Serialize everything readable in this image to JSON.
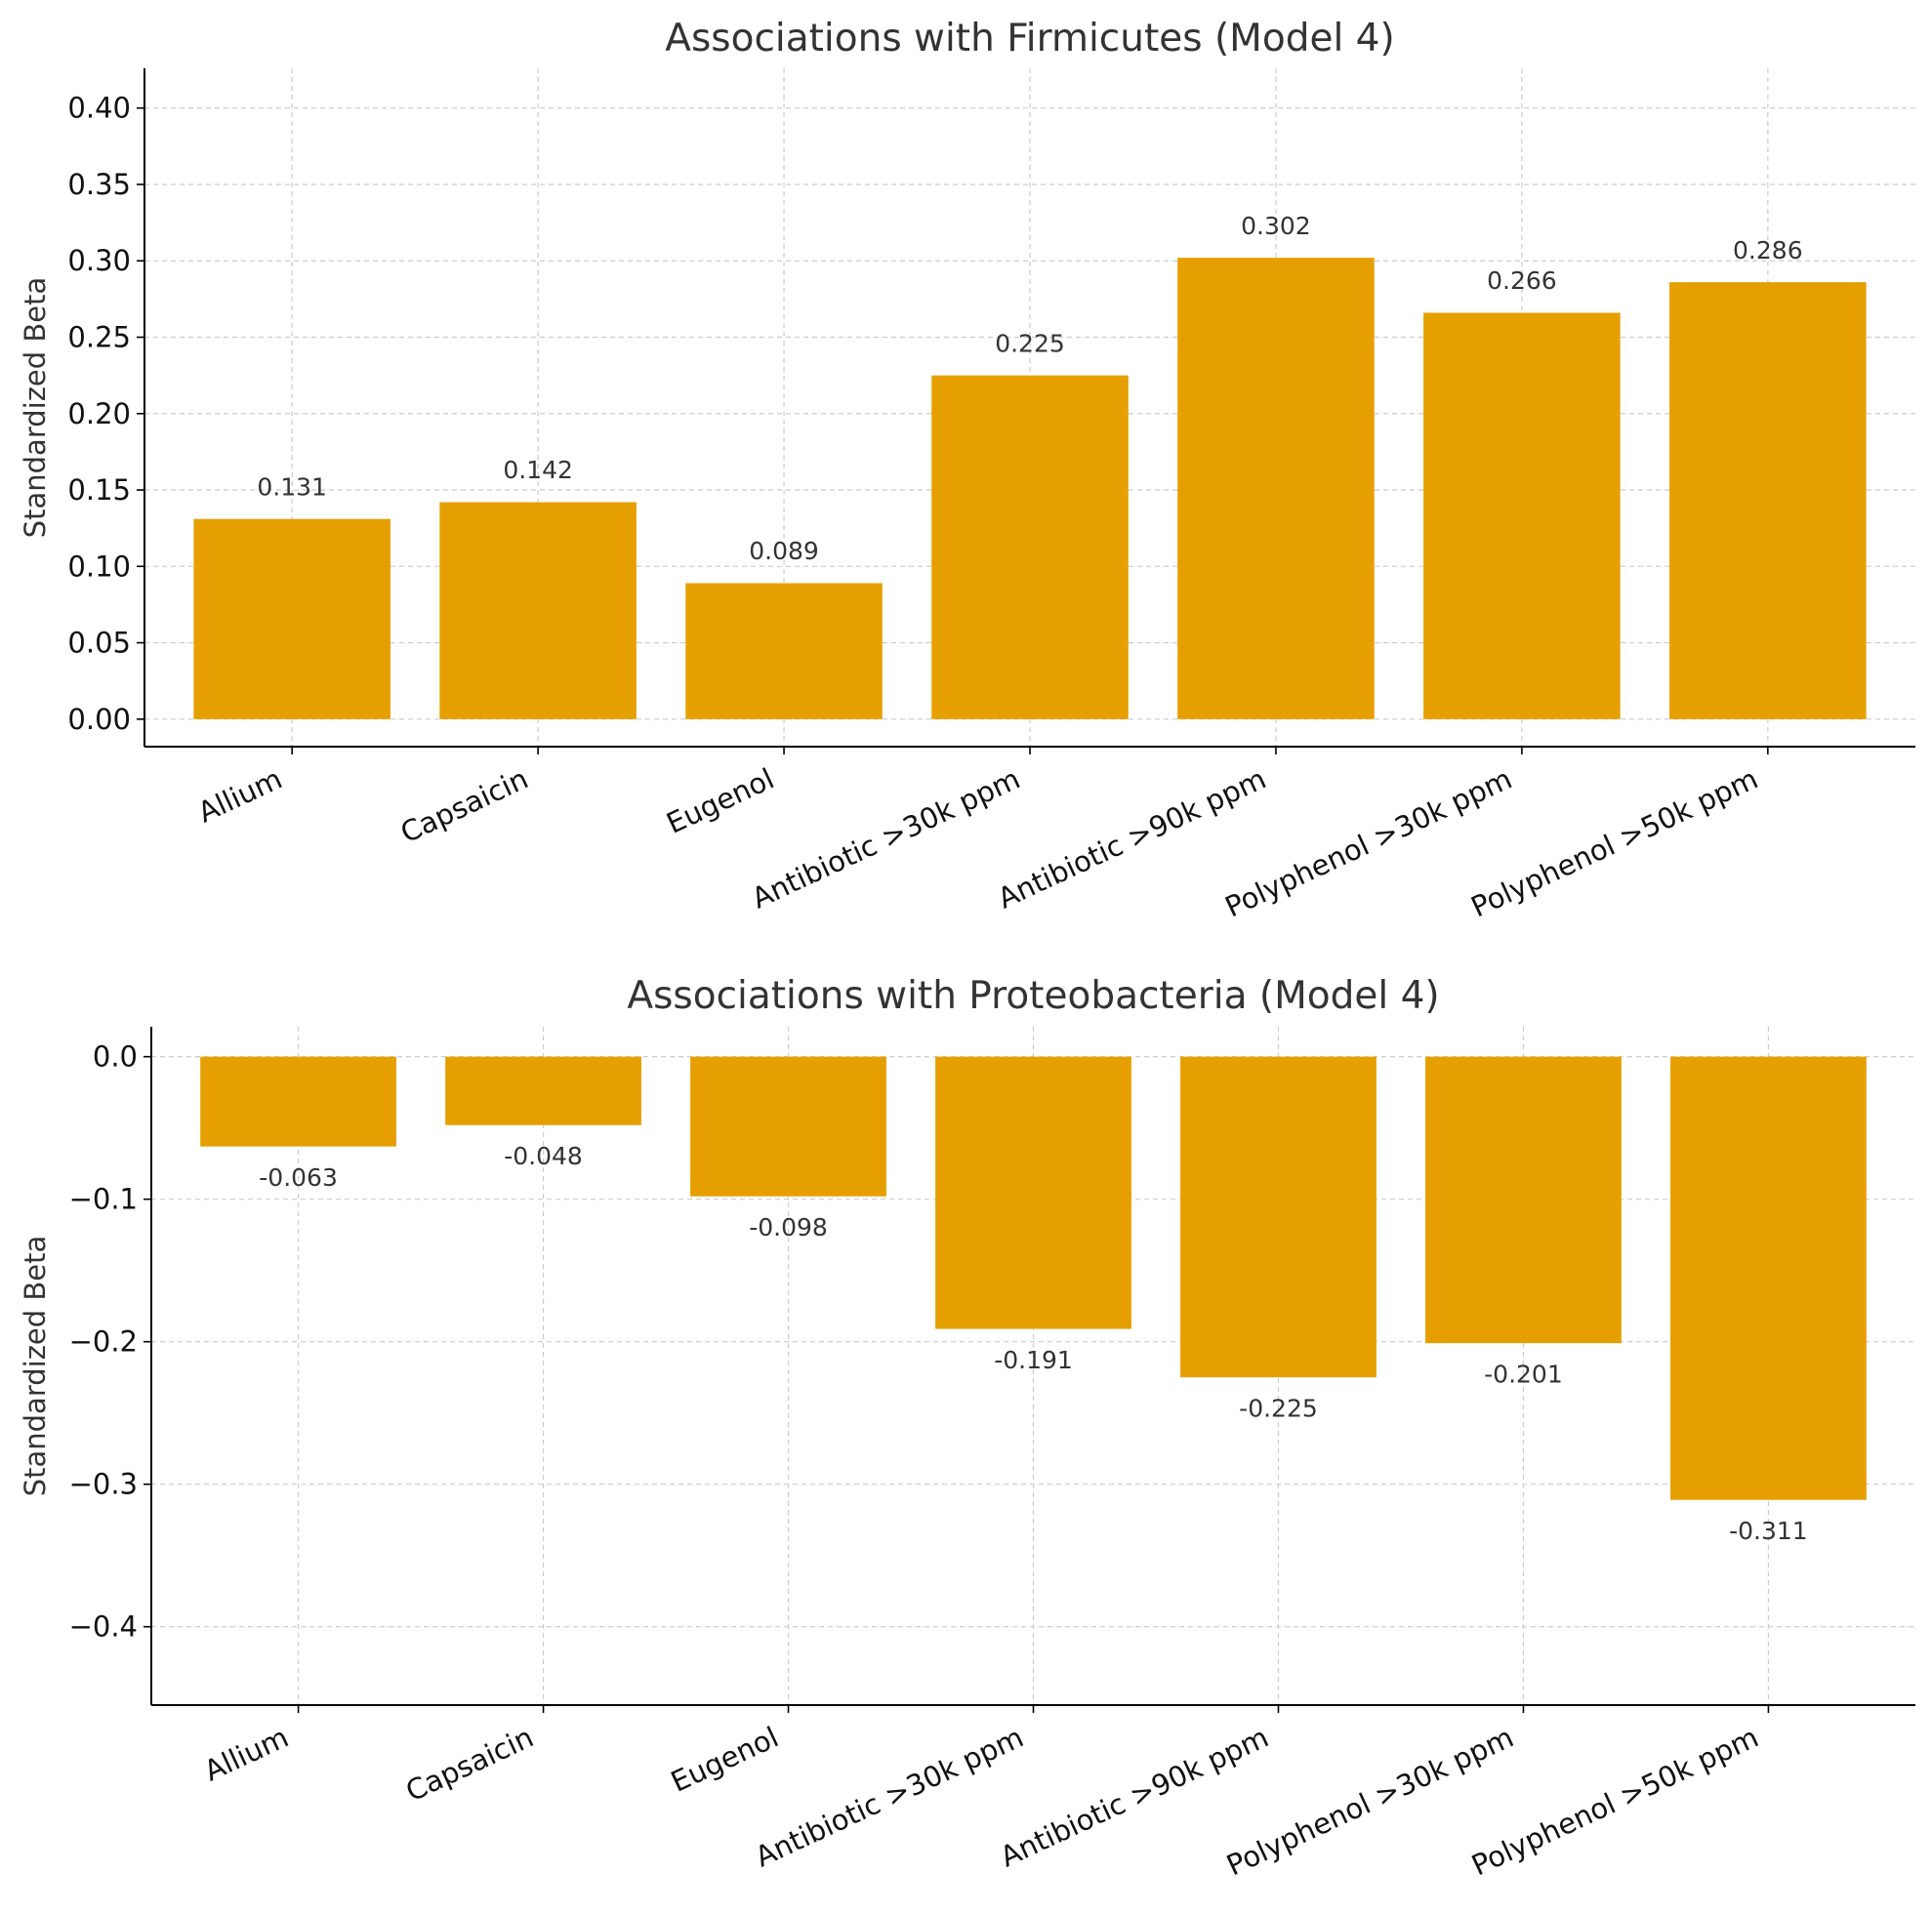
{
  "chart_data": [
    {
      "type": "bar",
      "title": "Associations with Firmicutes (Model 4)",
      "xlabel": "",
      "ylabel": "Standardized Beta",
      "categories": [
        "Allium",
        "Capsaicin",
        "Eugenol",
        "Antibiotic >30k ppm",
        "Antibiotic >90k ppm",
        "Polyphenol >30k ppm",
        "Polyphenol >50k ppm"
      ],
      "values": [
        0.131,
        0.142,
        0.089,
        0.225,
        0.302,
        0.266,
        0.286
      ],
      "value_labels": [
        "0.131",
        "0.142",
        "0.089",
        "0.225",
        "0.302",
        "0.266",
        "0.286"
      ],
      "ylim": [
        -0.018,
        0.426
      ],
      "yticks": [
        0.0,
        0.05,
        0.1,
        0.15,
        0.2,
        0.25,
        0.3,
        0.35,
        0.4
      ],
      "ytick_labels": [
        "0.00",
        "0.05",
        "0.10",
        "0.15",
        "0.20",
        "0.25",
        "0.30",
        "0.35",
        "0.40"
      ],
      "grid": true,
      "bar_color": "#e69f00"
    },
    {
      "type": "bar",
      "title": "Associations with Proteobacteria (Model 4)",
      "xlabel": "",
      "ylabel": "Standardized Beta",
      "categories": [
        "Allium",
        "Capsaicin",
        "Eugenol",
        "Antibiotic >30k ppm",
        "Antibiotic >90k ppm",
        "Polyphenol >30k ppm",
        "Polyphenol >50k ppm"
      ],
      "values": [
        -0.063,
        -0.048,
        -0.098,
        -0.191,
        -0.225,
        -0.201,
        -0.311
      ],
      "value_labels": [
        "-0.063",
        "-0.048",
        "-0.098",
        "-0.191",
        "-0.225",
        "-0.201",
        "-0.311"
      ],
      "ylim": [
        -0.455,
        0.021
      ],
      "yticks": [
        0.0,
        -0.1,
        -0.2,
        -0.3,
        -0.4
      ],
      "ytick_labels": [
        "0.0",
        "−0.1",
        "−0.2",
        "−0.3",
        "−0.4"
      ],
      "grid": true,
      "bar_color": "#e69f00"
    }
  ]
}
